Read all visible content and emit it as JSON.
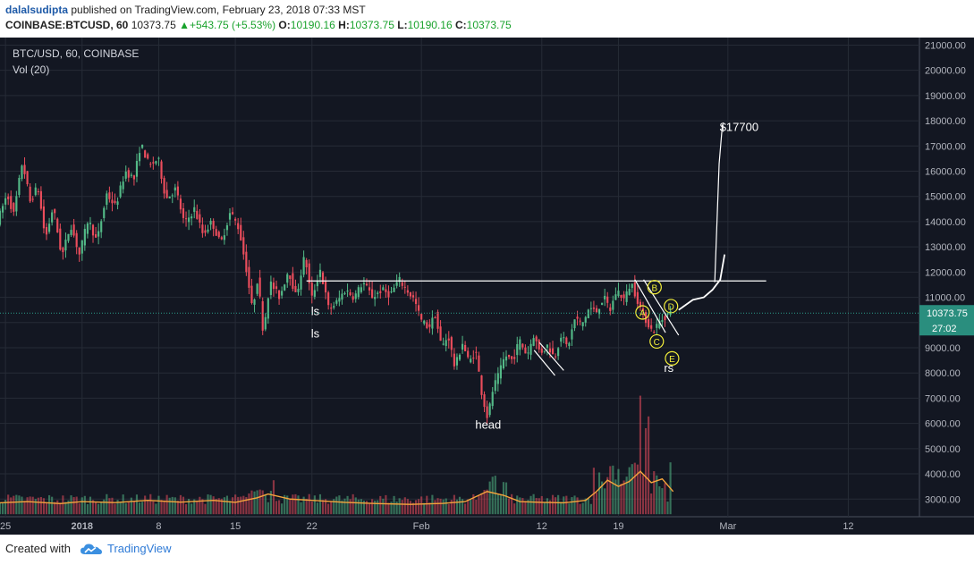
{
  "header": {
    "author": "dalalsudipta",
    "published_text": " published on TradingView.com, February 23, 2018 07:33 MST",
    "symbol": "COINBASE:BTCUSD, 60",
    "last": "10373.75",
    "change": "+543.75 (+5.53%)",
    "o_label": "O:",
    "o": "10190.16",
    "h_label": "H:",
    "h": "10373.75",
    "l_label": "L:",
    "l": "10190.16",
    "c_label": "C:",
    "c": "10373.75"
  },
  "legend": {
    "series": "BTC/USD, 60, COINBASE",
    "volume": "Vol (20)"
  },
  "footer": {
    "created_with": "Created with",
    "brand": "TradingView"
  },
  "colors": {
    "background": "#131722",
    "grid": "#262b36",
    "candle_up": "#53b987",
    "candle_down": "#eb4d5c",
    "volume_ma": "#f6a53c",
    "annotation": "#ffffff",
    "abcde_circle": "#f4f03a",
    "price_line": "#2a9e8a",
    "brand": "#2e7ad6"
  },
  "chart_data": {
    "type": "candlestick",
    "title": "BTC/USD, 60, COINBASE",
    "y_ticks": [
      3000,
      4000,
      5000,
      6000,
      7000,
      8000,
      9000,
      10000,
      11000,
      12000,
      13000,
      14000,
      15000,
      16000,
      17000,
      18000,
      19000,
      20000,
      21000
    ],
    "y_tick_labels": [
      "3000.00",
      "4000.00",
      "5000.00",
      "6000.00",
      "7000.00",
      "8000.00",
      "9000.00",
      "10000.00",
      "11000.00",
      "12000.00",
      "13000.00",
      "14000.00",
      "15000.00",
      "16000.00",
      "17000.00",
      "18000.00",
      "19000.00",
      "20000.00",
      "21000.00"
    ],
    "ylim": [
      2300,
      21300
    ],
    "x_ticks": [
      {
        "label": "25",
        "day": -7
      },
      {
        "label": "2018",
        "day": 0,
        "bold": true
      },
      {
        "label": "8",
        "day": 7
      },
      {
        "label": "15",
        "day": 14
      },
      {
        "label": "22",
        "day": 21
      },
      {
        "label": "Feb",
        "day": 31
      },
      {
        "label": "12",
        "day": 42
      },
      {
        "label": "19",
        "day": 49
      },
      {
        "label": "Mar",
        "day": 59
      },
      {
        "label": "12",
        "day": 70
      }
    ],
    "xlim": [
      -7.5,
      76.5
    ],
    "last_price": {
      "value": 10373.75,
      "label": "10373.75",
      "countdown": "27:02"
    },
    "price_path": [
      [
        -7.5,
        14000
      ],
      [
        -6.6,
        15100
      ],
      [
        -6,
        14300
      ],
      [
        -5.2,
        16400
      ],
      [
        -4.5,
        14800
      ],
      [
        -3.8,
        15400
      ],
      [
        -3.1,
        13300
      ],
      [
        -2.4,
        14600
      ],
      [
        -1.6,
        12600
      ],
      [
        -0.8,
        13900
      ],
      [
        0,
        12700
      ],
      [
        0.8,
        14100
      ],
      [
        1.6,
        13200
      ],
      [
        2.5,
        15100
      ],
      [
        3.3,
        14600
      ],
      [
        4.2,
        16000
      ],
      [
        5,
        15700
      ],
      [
        5.6,
        17100
      ],
      [
        6.4,
        16200
      ],
      [
        7.2,
        16500
      ],
      [
        7.9,
        14900
      ],
      [
        8.8,
        15300
      ],
      [
        9.6,
        13900
      ],
      [
        10.5,
        14500
      ],
      [
        11.3,
        13500
      ],
      [
        12.1,
        14000
      ],
      [
        12.9,
        13100
      ],
      [
        13.8,
        14400
      ],
      [
        14.6,
        13700
      ],
      [
        15.3,
        12000
      ],
      [
        15.8,
        10500
      ],
      [
        16.3,
        11800
      ],
      [
        16.8,
        9600
      ],
      [
        17.4,
        11600
      ],
      [
        18.3,
        11000
      ],
      [
        19.1,
        12100
      ],
      [
        19.8,
        11000
      ],
      [
        20.6,
        12700
      ],
      [
        21.2,
        10900
      ],
      [
        22,
        12100
      ],
      [
        22.8,
        10500
      ],
      [
        23.5,
        10800
      ],
      [
        24.3,
        11300
      ],
      [
        25.1,
        11000
      ],
      [
        25.9,
        11600
      ],
      [
        26.8,
        11000
      ],
      [
        27.6,
        11300
      ],
      [
        28.4,
        11100
      ],
      [
        29.2,
        11700
      ],
      [
        29.9,
        11300
      ],
      [
        30.6,
        10900
      ],
      [
        31.2,
        10100
      ],
      [
        31.9,
        9800
      ],
      [
        32.5,
        10300
      ],
      [
        33.1,
        9000
      ],
      [
        33.7,
        9500
      ],
      [
        34.3,
        8200
      ],
      [
        35,
        9200
      ],
      [
        35.6,
        8400
      ],
      [
        36.2,
        8900
      ],
      [
        36.8,
        7100
      ],
      [
        37.3,
        6200
      ],
      [
        37.8,
        7400
      ],
      [
        38.3,
        7900
      ],
      [
        38.9,
        8700
      ],
      [
        39.6,
        8500
      ],
      [
        40.2,
        9300
      ],
      [
        40.9,
        8700
      ],
      [
        41.5,
        9500
      ],
      [
        42.1,
        8800
      ],
      [
        42.8,
        9100
      ],
      [
        43.4,
        8600
      ],
      [
        44,
        9500
      ],
      [
        44.6,
        9000
      ],
      [
        45.3,
        10200
      ],
      [
        45.9,
        9900
      ],
      [
        46.6,
        10600
      ],
      [
        47.2,
        10400
      ],
      [
        47.9,
        11000
      ],
      [
        48.5,
        10500
      ],
      [
        49.1,
        11300
      ],
      [
        49.8,
        10900
      ],
      [
        50.4,
        11600
      ],
      [
        50.9,
        11000
      ],
      [
        51.4,
        10400
      ],
      [
        51.9,
        10000
      ],
      [
        52.4,
        9600
      ],
      [
        52.9,
        10000
      ],
      [
        53.4,
        10200
      ],
      [
        53.9,
        10374
      ]
    ],
    "volume_ma_path": [
      [
        -7.5,
        2850
      ],
      [
        -5,
        2900
      ],
      [
        -2,
        2820
      ],
      [
        0,
        2900
      ],
      [
        3,
        2860
      ],
      [
        6,
        2950
      ],
      [
        9,
        2880
      ],
      [
        12,
        2950
      ],
      [
        14,
        2870
      ],
      [
        16,
        3050
      ],
      [
        17,
        3200
      ],
      [
        19,
        3000
      ],
      [
        21,
        2950
      ],
      [
        24,
        2870
      ],
      [
        27,
        2820
      ],
      [
        30,
        2790
      ],
      [
        33,
        2830
      ],
      [
        35,
        2900
      ],
      [
        37,
        3300
      ],
      [
        38.5,
        3150
      ],
      [
        40,
        2900
      ],
      [
        42,
        2870
      ],
      [
        44,
        2850
      ],
      [
        46,
        2950
      ],
      [
        47,
        3300
      ],
      [
        48,
        3750
      ],
      [
        49,
        3500
      ],
      [
        50,
        3700
      ],
      [
        51,
        4100
      ],
      [
        52,
        3650
      ],
      [
        53,
        3800
      ],
      [
        54,
        3300
      ]
    ],
    "annotations": {
      "neckline": {
        "from": [
          49.5,
          11650
        ],
        "to": [
          62.5,
          11650
        ]
      },
      "neckline_left": {
        "from": [
          20.5,
          11650
        ],
        "to": [
          49.5,
          11650
        ]
      },
      "projection": [
        [
          54.5,
          10500
        ],
        [
          55.8,
          10900
        ],
        [
          56.8,
          11000
        ],
        [
          57.6,
          11300
        ],
        [
          58.3,
          11700
        ],
        [
          58.7,
          12700
        ]
      ],
      "spike": [
        [
          57.8,
          11600
        ],
        [
          58.2,
          16300
        ],
        [
          58.5,
          17850
        ]
      ],
      "target_label": {
        "text": "$17700",
        "day": 58.5,
        "price": 17600
      },
      "flag_lines": [
        {
          "from": [
            41.3,
            8900
          ],
          "to": [
            43.2,
            7900
          ]
        },
        {
          "from": [
            41.8,
            9200
          ],
          "to": [
            44,
            8100
          ]
        },
        {
          "from": [
            50.5,
            11700
          ],
          "to": [
            53.3,
            9600
          ]
        },
        {
          "from": [
            51.3,
            11700
          ],
          "to": [
            54.5,
            9500
          ]
        }
      ],
      "waves": [
        {
          "text": "A",
          "day": 51.2,
          "price": 10400
        },
        {
          "text": "B",
          "day": 52.3,
          "price": 11400
        },
        {
          "text": "C",
          "day": 52.5,
          "price": 9250
        },
        {
          "text": "D",
          "day": 53.8,
          "price": 10650
        },
        {
          "text": "E",
          "day": 53.9,
          "price": 8580
        }
      ],
      "labels": [
        {
          "text": "ls",
          "day": 21.3,
          "price": 10300
        },
        {
          "text": "ls",
          "day": 21.3,
          "price": 9400
        },
        {
          "text": "head",
          "day": 37.1,
          "price": 5800
        },
        {
          "text": "rs",
          "day": 53.6,
          "price": 8050
        }
      ]
    }
  }
}
